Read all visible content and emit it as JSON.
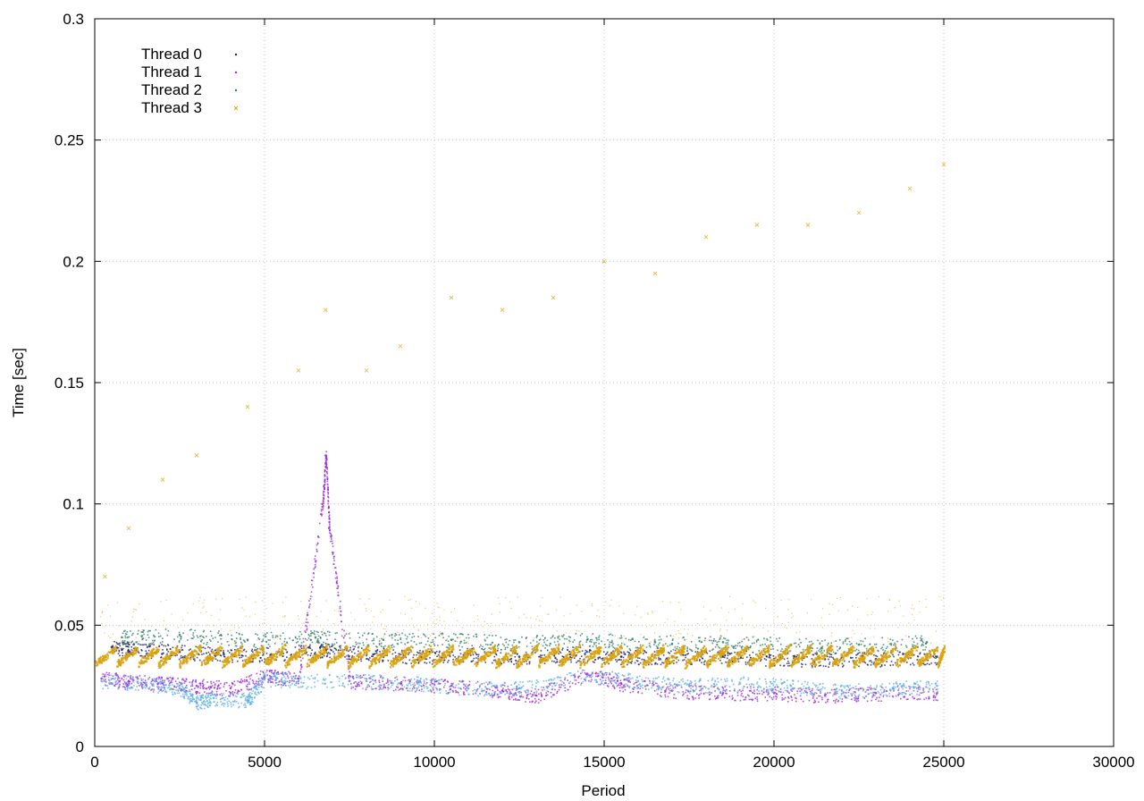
{
  "chart_data": {
    "type": "scatter",
    "title": "",
    "xlabel": "Period",
    "ylabel": "Time [sec]",
    "xlim": [
      0,
      30000
    ],
    "ylim": [
      0,
      0.3
    ],
    "xticks": [
      "0",
      "5000",
      "10000",
      "15000",
      "20000",
      "25000",
      "30000"
    ],
    "yticks": [
      "0",
      "0.05",
      "0.1",
      "0.15",
      "0.2",
      "0.25",
      "0.3"
    ],
    "grid": true,
    "legend_position": "top-left",
    "series": [
      {
        "name": "Thread 0",
        "color": "#1b1f5e",
        "marker": "dot",
        "points": [
          [
            500,
            0.041
          ],
          [
            1200,
            0.04
          ],
          [
            2500,
            0.039
          ],
          [
            3800,
            0.038
          ],
          [
            5200,
            0.038
          ],
          [
            6800,
            0.04
          ],
          [
            8200,
            0.038
          ],
          [
            9600,
            0.037
          ],
          [
            11000,
            0.038
          ],
          [
            12500,
            0.037
          ],
          [
            14000,
            0.038
          ],
          [
            15500,
            0.037
          ],
          [
            17000,
            0.037
          ],
          [
            18500,
            0.037
          ],
          [
            20000,
            0.036
          ],
          [
            21500,
            0.036
          ],
          [
            23000,
            0.036
          ],
          [
            24800,
            0.037
          ]
        ]
      },
      {
        "name": "Thread 1",
        "color": "#9a2bd8",
        "marker": "dot",
        "points": [
          [
            200,
            0.028
          ],
          [
            1000,
            0.027
          ],
          [
            2000,
            0.026
          ],
          [
            3000,
            0.025
          ],
          [
            4000,
            0.024
          ],
          [
            5000,
            0.029
          ],
          [
            6000,
            0.028
          ],
          [
            6700,
            0.1
          ],
          [
            6800,
            0.12
          ],
          [
            6900,
            0.09
          ],
          [
            7500,
            0.027
          ],
          [
            9000,
            0.026
          ],
          [
            10500,
            0.025
          ],
          [
            12000,
            0.023
          ],
          [
            13000,
            0.021
          ],
          [
            14500,
            0.03
          ],
          [
            15500,
            0.026
          ],
          [
            17000,
            0.023
          ],
          [
            18500,
            0.022
          ],
          [
            20000,
            0.022
          ],
          [
            21500,
            0.021
          ],
          [
            23000,
            0.022
          ],
          [
            24800,
            0.022
          ]
        ]
      },
      {
        "name": "Thread 2",
        "color": "#2e7d66",
        "marker": "dot",
        "points": [
          [
            800,
            0.045
          ],
          [
            2500,
            0.046
          ],
          [
            4500,
            0.044
          ],
          [
            6500,
            0.045
          ],
          [
            8500,
            0.044
          ],
          [
            10500,
            0.044
          ],
          [
            12500,
            0.043
          ],
          [
            14500,
            0.044
          ],
          [
            16500,
            0.043
          ],
          [
            18500,
            0.043
          ],
          [
            20500,
            0.042
          ],
          [
            22500,
            0.042
          ],
          [
            24500,
            0.043
          ]
        ]
      },
      {
        "name": "Thread 3",
        "color": "#d9a310",
        "marker": "cross",
        "points": [
          [
            300,
            0.07
          ],
          [
            1000,
            0.09
          ],
          [
            2000,
            0.11
          ],
          [
            3000,
            0.12
          ],
          [
            4500,
            0.14
          ],
          [
            6000,
            0.155
          ],
          [
            6800,
            0.18
          ],
          [
            8000,
            0.155
          ],
          [
            9000,
            0.165
          ],
          [
            10500,
            0.185
          ],
          [
            12000,
            0.18
          ],
          [
            13500,
            0.185
          ],
          [
            15000,
            0.2
          ],
          [
            16500,
            0.195
          ],
          [
            18000,
            0.21
          ],
          [
            19500,
            0.215
          ],
          [
            21000,
            0.215
          ],
          [
            22500,
            0.22
          ],
          [
            24000,
            0.23
          ],
          [
            25000,
            0.24
          ]
        ]
      },
      {
        "name": "",
        "color": "#5aaee6",
        "marker": "dot",
        "points": [
          [
            200,
            0.027
          ],
          [
            1500,
            0.026
          ],
          [
            2500,
            0.024
          ],
          [
            3000,
            0.018
          ],
          [
            3500,
            0.02
          ],
          [
            4500,
            0.019
          ],
          [
            5000,
            0.028
          ],
          [
            6000,
            0.027
          ],
          [
            8000,
            0.027
          ],
          [
            9500,
            0.026
          ],
          [
            11000,
            0.024
          ],
          [
            12500,
            0.024
          ],
          [
            14500,
            0.029
          ],
          [
            16000,
            0.027
          ],
          [
            17500,
            0.025
          ],
          [
            19000,
            0.026
          ],
          [
            20500,
            0.025
          ],
          [
            22000,
            0.023
          ],
          [
            23500,
            0.024
          ],
          [
            24800,
            0.025
          ]
        ]
      }
    ],
    "sawtooth_band": {
      "series": "Thread 3",
      "color": "#d9a310",
      "x_start": 0,
      "x_end": 25000,
      "y_low": 0.034,
      "y_high": 0.041
    }
  }
}
